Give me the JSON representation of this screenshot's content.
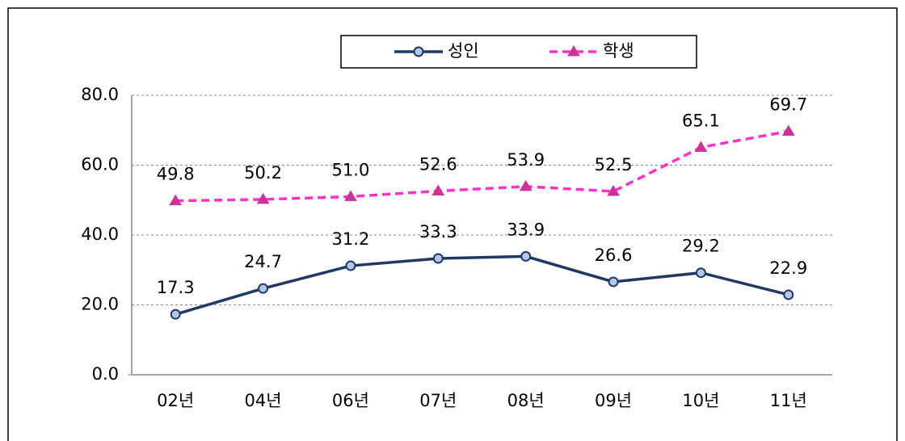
{
  "chart_data": {
    "type": "line",
    "categories": [
      "02년",
      "04년",
      "06년",
      "07년",
      "08년",
      "09년",
      "10년",
      "11년"
    ],
    "series": [
      {
        "name": "성인",
        "color": "#1f3864",
        "marker_fill": "#b4c7e7",
        "marker": "circle",
        "dashed": false,
        "values": [
          17.3,
          24.7,
          31.2,
          33.3,
          33.9,
          26.6,
          29.2,
          22.9
        ],
        "value_labels": [
          "17.3",
          "24.7",
          "31.2",
          "33.3",
          "33.9",
          "26.6",
          "29.2",
          "22.9"
        ]
      },
      {
        "name": "학생",
        "color": "#ff33cc",
        "marker_fill": "#cc3399",
        "marker": "triangle",
        "dashed": true,
        "values": [
          49.8,
          50.2,
          51.0,
          52.6,
          53.9,
          52.5,
          65.1,
          69.7
        ],
        "value_labels": [
          "49.8",
          "50.2",
          "51.0",
          "52.6",
          "53.9",
          "52.5",
          "65.1",
          "69.7"
        ]
      }
    ],
    "ylim": [
      0,
      80
    ],
    "yticks": [
      {
        "value": 0,
        "label": "0.0"
      },
      {
        "value": 20,
        "label": "20.0"
      },
      {
        "value": 40,
        "label": "40.0"
      },
      {
        "value": 60,
        "label": "60.0"
      },
      {
        "value": 80,
        "label": "80.0"
      }
    ],
    "grid": true,
    "legend": "top"
  }
}
